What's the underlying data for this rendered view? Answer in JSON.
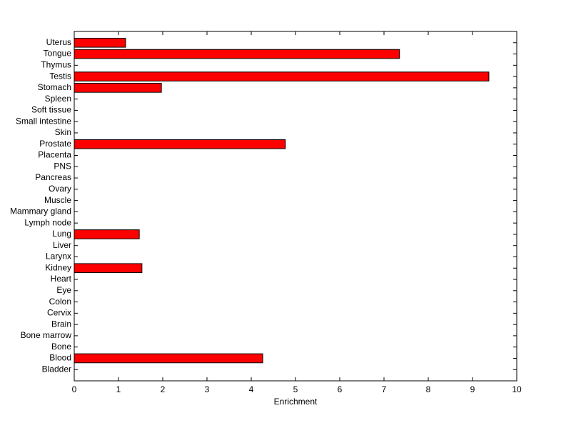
{
  "chart_data": {
    "type": "barh",
    "xlabel": "Enrichment",
    "categories": [
      "Bladder",
      "Blood",
      "Bone",
      "Bone marrow",
      "Brain",
      "Cervix",
      "Colon",
      "Eye",
      "Heart",
      "Kidney",
      "Larynx",
      "Liver",
      "Lung",
      "Lymph node",
      "Mammary gland",
      "Muscle",
      "Ovary",
      "Pancreas",
      "PNS",
      "Placenta",
      "Prostate",
      "Skin",
      "Small intestine",
      "Soft tissue",
      "Spleen",
      "Stomach",
      "Testis",
      "Thymus",
      "Tongue",
      "Uterus"
    ],
    "values": [
      0,
      4.26,
      0,
      0,
      0,
      0,
      0,
      0,
      0,
      1.53,
      0,
      0,
      1.47,
      0,
      0,
      0,
      0,
      0,
      0,
      0,
      4.77,
      0,
      0,
      0,
      0,
      1.97,
      9.37,
      0,
      7.35,
      1.16
    ],
    "color": "#ff0000",
    "xlim": [
      0,
      10
    ],
    "xticks": [
      0,
      1,
      2,
      3,
      4,
      5,
      6,
      7,
      8,
      9,
      10
    ]
  }
}
